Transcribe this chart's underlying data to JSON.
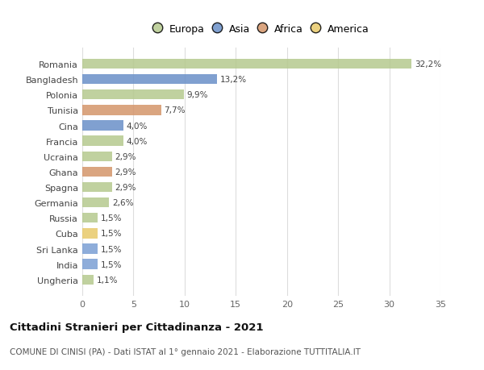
{
  "countries": [
    "Romania",
    "Bangladesh",
    "Polonia",
    "Tunisia",
    "Cina",
    "Francia",
    "Ucraina",
    "Ghana",
    "Spagna",
    "Germania",
    "Russia",
    "Cuba",
    "Sri Lanka",
    "India",
    "Ungheria"
  ],
  "values": [
    32.2,
    13.2,
    9.9,
    7.7,
    4.0,
    4.0,
    2.9,
    2.9,
    2.9,
    2.6,
    1.5,
    1.5,
    1.5,
    1.5,
    1.1
  ],
  "labels": [
    "32,2%",
    "13,2%",
    "9,9%",
    "7,7%",
    "4,0%",
    "4,0%",
    "2,9%",
    "2,9%",
    "2,9%",
    "2,6%",
    "1,5%",
    "1,5%",
    "1,5%",
    "1,5%",
    "1,1%"
  ],
  "colors": [
    "#b5c98e",
    "#6a90c8",
    "#b5c98e",
    "#d4956a",
    "#6a90c8",
    "#b5c98e",
    "#b5c98e",
    "#d4956a",
    "#b5c98e",
    "#b5c98e",
    "#b5c98e",
    "#e8c96a",
    "#7a9fd4",
    "#7a9fd4",
    "#b5c98e"
  ],
  "legend_labels": [
    "Europa",
    "Asia",
    "Africa",
    "America"
  ],
  "legend_colors": [
    "#b5c98e",
    "#6a90c8",
    "#d4956a",
    "#e8c96a"
  ],
  "title": "Cittadini Stranieri per Cittadinanza - 2021",
  "subtitle": "COMUNE DI CINISI (PA) - Dati ISTAT al 1° gennaio 2021 - Elaborazione TUTTITALIA.IT",
  "xlim": [
    0,
    35
  ],
  "xticks": [
    0,
    5,
    10,
    15,
    20,
    25,
    30,
    35
  ],
  "background_color": "#ffffff",
  "grid_color": "#dddddd",
  "bar_height": 0.65
}
